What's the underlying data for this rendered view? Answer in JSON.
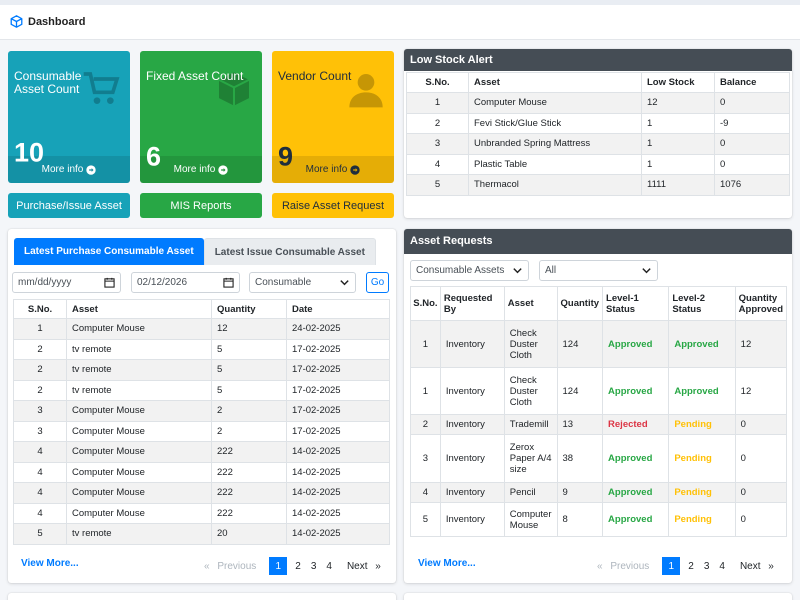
{
  "header": {
    "title": "Dashboard"
  },
  "stats": [
    {
      "label": "Consumable Asset Count",
      "value": "10",
      "more": "More info",
      "icon": "cart-icon"
    },
    {
      "label": "Fixed Asset Count",
      "value": "6",
      "more": "More info",
      "icon": "cube-icon"
    },
    {
      "label": "Vendor Count",
      "value": "9",
      "more": "More info",
      "icon": "user-icon"
    }
  ],
  "actions": {
    "purchase": "Purchase/Issue Asset",
    "mis": "MIS Reports",
    "raise": "Raise Asset Request"
  },
  "colors": {
    "teal": "#17a2b8",
    "green": "#28a745",
    "yellow": "#ffc107",
    "blue": "#007bff",
    "dark": "#454d55"
  },
  "low_stock": {
    "title": "Low Stock Alert",
    "columns": [
      "S.No.",
      "Asset",
      "Low Stock",
      "Balance"
    ],
    "rows": [
      [
        "1",
        "Computer Mouse",
        "12",
        "0"
      ],
      [
        "2",
        "Fevi Stick/Glue Stick",
        "1",
        "-9"
      ],
      [
        "3",
        "Unbranded Spring Mattress",
        "1",
        "0"
      ],
      [
        "4",
        "Plastic Table",
        "1",
        "0"
      ],
      [
        "5",
        "Thermacol",
        "1111",
        "1076"
      ]
    ]
  },
  "latest": {
    "tab_active": "Latest Purchase Consumable Asset",
    "tab_inactive": "Latest Issue Consumable Asset",
    "from_placeholder": "mm/dd/yyyy",
    "to_value": "02/12/2026",
    "type_value": "Consumable",
    "go": "Go",
    "columns": [
      "S.No.",
      "Asset",
      "Quantity",
      "Date"
    ],
    "rows": [
      [
        "1",
        "Computer Mouse",
        "12",
        "24-02-2025"
      ],
      [
        "2",
        "tv remote",
        "5",
        "17-02-2025"
      ],
      [
        "2",
        "tv remote",
        "5",
        "17-02-2025"
      ],
      [
        "2",
        "tv remote",
        "5",
        "17-02-2025"
      ],
      [
        "3",
        "Computer Mouse",
        "2",
        "17-02-2025"
      ],
      [
        "3",
        "Computer Mouse",
        "2",
        "17-02-2025"
      ],
      [
        "4",
        "Computer Mouse",
        "222",
        "14-02-2025"
      ],
      [
        "4",
        "Computer Mouse",
        "222",
        "14-02-2025"
      ],
      [
        "4",
        "Computer Mouse",
        "222",
        "14-02-2025"
      ],
      [
        "4",
        "Computer Mouse",
        "222",
        "14-02-2025"
      ],
      [
        "5",
        "tv remote",
        "20",
        "14-02-2025"
      ]
    ],
    "view_more": "View More...",
    "pager": {
      "prev": "Previous",
      "pages": [
        "1",
        "2",
        "3",
        "4"
      ],
      "next": "Next"
    }
  },
  "requests": {
    "title": "Asset Requests",
    "filter1": "Consumable Assets",
    "filter2": "All",
    "columns": [
      "S.No.",
      "Requested By",
      "Asset",
      "Quantity",
      "Level-1 Status",
      "Level-2 Status",
      "Quantity Approved"
    ],
    "rows": [
      [
        "1",
        "Inventory",
        "Check Duster Cloth",
        "124",
        "Approved",
        "Approved",
        "12"
      ],
      [
        "1",
        "Inventory",
        "Check Duster Cloth",
        "124",
        "Approved",
        "Approved",
        "12"
      ],
      [
        "2",
        "Inventory",
        "Trademill",
        "13",
        "Rejected",
        "Pending",
        "0"
      ],
      [
        "3",
        "Inventory",
        "Zerox Paper A/4 size",
        "38",
        "Approved",
        "Pending",
        "0"
      ],
      [
        "4",
        "Inventory",
        "Pencil",
        "9",
        "Approved",
        "Pending",
        "0"
      ],
      [
        "5",
        "Inventory",
        "Computer Mouse",
        "8",
        "Approved",
        "Pending",
        "0"
      ]
    ],
    "view_more": "View More...",
    "pager": {
      "prev": "Previous",
      "pages": [
        "1",
        "2",
        "3",
        "4"
      ],
      "next": "Next"
    }
  }
}
